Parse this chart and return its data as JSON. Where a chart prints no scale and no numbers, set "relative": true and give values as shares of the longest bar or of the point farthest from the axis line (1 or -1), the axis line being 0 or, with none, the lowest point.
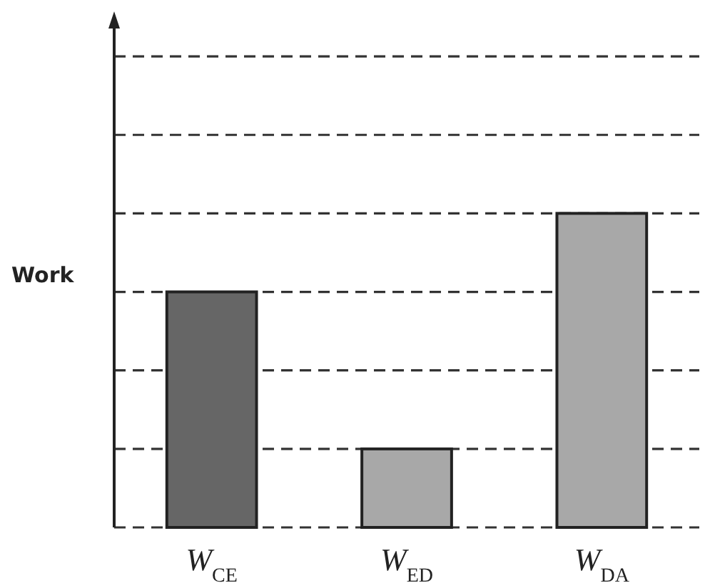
{
  "chart_data": {
    "type": "bar",
    "ylabel": "Work",
    "categories": [
      "W$_{CE}$",
      "W$_{ED}$",
      "W$_{DA}$"
    ],
    "values": [
      0.75,
      0.25,
      1
    ],
    "colors": [
      "#666666",
      "#a8a8a8",
      "#a8a8a8"
    ],
    "relative": true,
    "grid": "y"
  }
}
